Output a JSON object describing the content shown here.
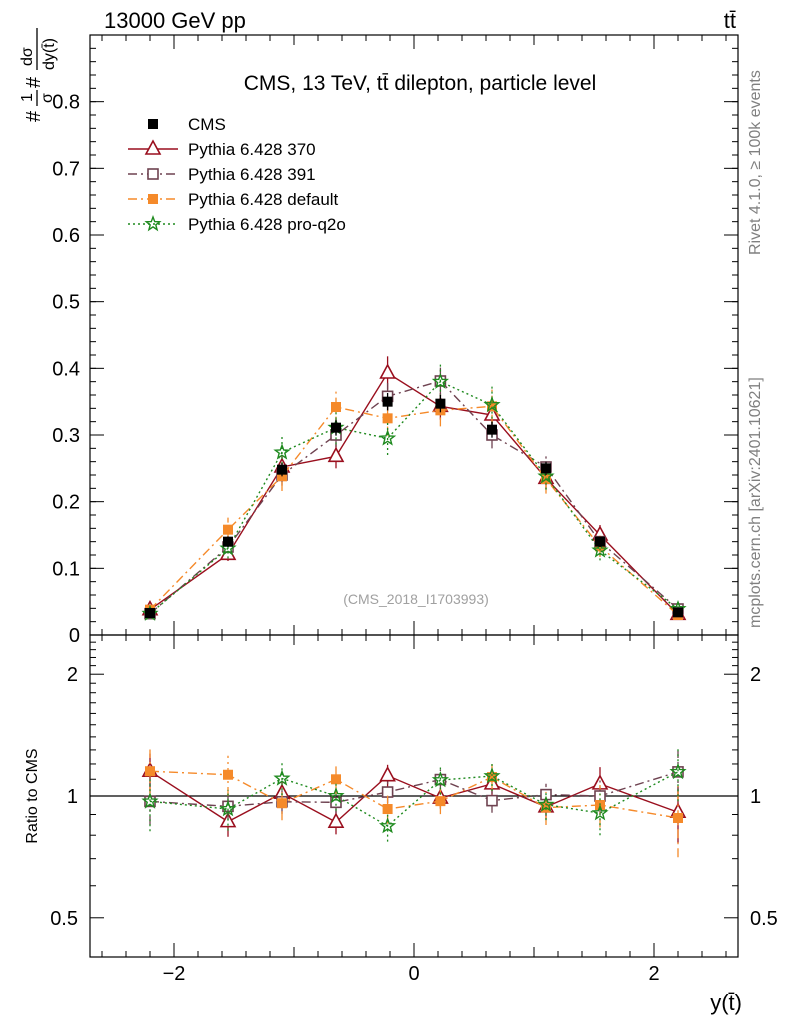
{
  "header": {
    "beam": "13000 GeV pp",
    "process": "tt̄"
  },
  "side_text": {
    "rivet": "Rivet 4.1.0, ≥ 100k events",
    "mcplots": "mcplots.cern.ch [arXiv:2401.10621]"
  },
  "chart_data": {
    "type": "line",
    "title": "CMS, 13 TeV, tt̄ dilepton, particle level",
    "watermark": "(CMS_2018_I1703993)",
    "xlabel": "y(t̄)",
    "ylabel": "#1/σ# dσ/dy(t̄)",
    "ylabel_parts": {
      "prefix": "#",
      "frac_num": "1",
      "frac_den": "σ",
      "mid": "#",
      "dnum": "dσ",
      "dden": "dy(t̄)"
    },
    "ratio_ylabel": "Ratio to CMS",
    "xlim": [
      -2.7,
      2.7
    ],
    "ylim": [
      0,
      0.9
    ],
    "ratio_ylim": [
      0.4,
      2.5
    ],
    "x_ticks": [
      -2,
      0,
      2
    ],
    "x_tick_labels": [
      "−2",
      "0",
      "2"
    ],
    "y_ticks": [
      0,
      0.1,
      0.2,
      0.3,
      0.4,
      0.5,
      0.6,
      0.7,
      0.8
    ],
    "y_tick_labels": [
      "0",
      "0.1",
      "0.2",
      "0.3",
      "0.4",
      "0.5",
      "0.6",
      "0.7",
      "0.8"
    ],
    "ratio_ticks": [
      0.5,
      1,
      2
    ],
    "ratio_tick_labels": [
      "0.5",
      "1",
      "2"
    ],
    "x": [
      -2.2,
      -1.55,
      -1.1,
      -0.65,
      -0.22,
      0.22,
      0.65,
      1.1,
      1.55,
      2.2
    ],
    "data": {
      "name": "CMS",
      "values": [
        0.033,
        0.14,
        0.248,
        0.311,
        0.35,
        0.347,
        0.308,
        0.25,
        0.14,
        0.034
      ],
      "errors": [
        0.004,
        0.008,
        0.01,
        0.012,
        0.013,
        0.013,
        0.012,
        0.01,
        0.008,
        0.004
      ]
    },
    "series": [
      {
        "name": "Pythia 6.428 370",
        "color": "#9a0f1e",
        "dash": "",
        "marker": "triangle",
        "values": [
          0.038,
          0.121,
          0.252,
          0.268,
          0.393,
          0.343,
          0.33,
          0.235,
          0.15,
          0.031
        ],
        "errors": [
          0.004,
          0.01,
          0.016,
          0.018,
          0.025,
          0.02,
          0.02,
          0.016,
          0.015,
          0.005
        ]
      },
      {
        "name": "Pythia 6.428 391",
        "color": "#6e4250",
        "dash": "9,4,2,4",
        "marker": "square-open",
        "values": [
          0.032,
          0.132,
          0.24,
          0.3,
          0.358,
          0.381,
          0.3,
          0.252,
          0.14,
          0.039
        ],
        "errors": [
          0.004,
          0.01,
          0.016,
          0.018,
          0.022,
          0.022,
          0.02,
          0.016,
          0.014,
          0.005
        ]
      },
      {
        "name": "Pythia 6.428 default",
        "color": "#f58a2a",
        "dash": "9,4,2,4",
        "marker": "square-filled",
        "values": [
          0.038,
          0.158,
          0.238,
          0.342,
          0.325,
          0.337,
          0.343,
          0.234,
          0.133,
          0.03
        ],
        "errors": [
          0.005,
          0.018,
          0.022,
          0.028,
          0.026,
          0.024,
          0.026,
          0.022,
          0.016,
          0.006
        ]
      },
      {
        "name": "Pythia 6.428 pro-q2o",
        "color": "#1f8a1f",
        "dash": "2,3",
        "marker": "star",
        "values": [
          0.032,
          0.13,
          0.274,
          0.311,
          0.295,
          0.38,
          0.345,
          0.238,
          0.127,
          0.039
        ],
        "errors": [
          0.005,
          0.015,
          0.025,
          0.025,
          0.025,
          0.03,
          0.028,
          0.02,
          0.015,
          0.006
        ]
      }
    ],
    "legend": [
      "CMS",
      "Pythia 6.428 370",
      "Pythia 6.428 391",
      "Pythia 6.428 default",
      "Pythia 6.428 pro-q2o"
    ],
    "legend_position": "top-left"
  }
}
